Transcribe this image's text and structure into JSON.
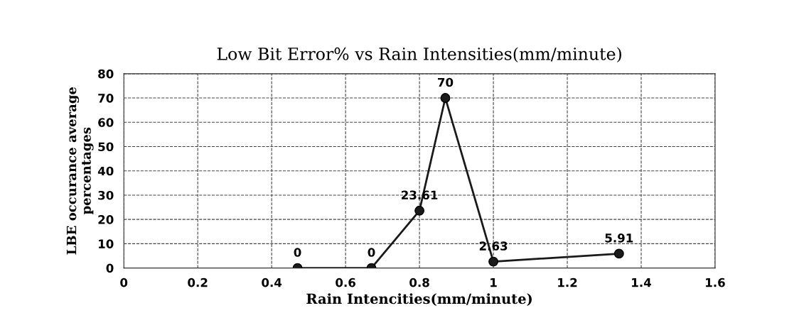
{
  "chart_data": {
    "type": "line",
    "title": "Low Bit Error% vs Rain Intensities(mm/minute)",
    "xlabel": "Rain Intencities(mm/minute)",
    "ylabel": "LBE occurance average\npercentages",
    "x": [
      0.47,
      0.67,
      0.8,
      0.87,
      1.0,
      1.34
    ],
    "series": [
      {
        "color": "#1a1a1a",
        "values": [
          0,
          0,
          23.61,
          70,
          2.63,
          5.91
        ]
      }
    ],
    "xlim": [
      0,
      1.6
    ],
    "xticks": [
      0,
      0.2,
      0.4,
      0.6,
      0.8,
      1,
      1.2,
      1.4,
      1.6
    ],
    "ylim": [
      0,
      80
    ],
    "yticks": [
      0,
      10,
      20,
      30,
      40,
      50,
      60,
      70,
      80
    ],
    "grid": true,
    "marker": "circle",
    "line_style": "solid",
    "data_labels": true
  }
}
